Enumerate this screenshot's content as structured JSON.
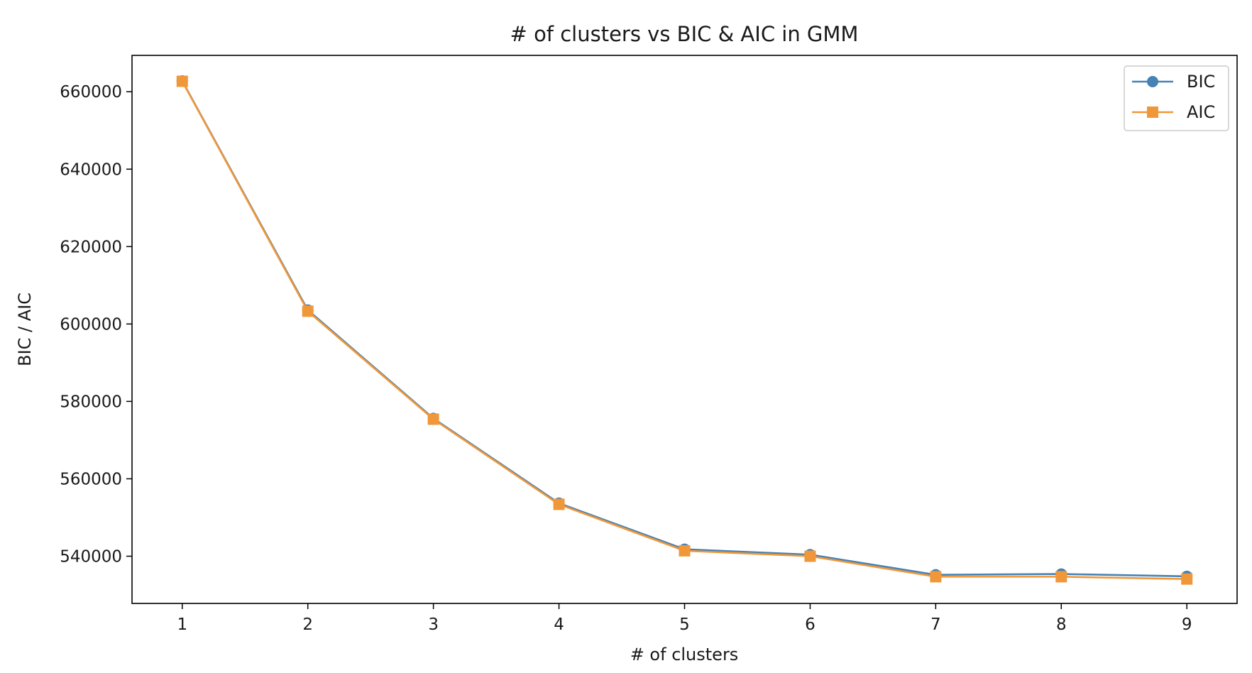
{
  "chart_data": {
    "type": "line",
    "title": "# of clusters vs BIC & AIC in GMM",
    "xlabel": "# of clusters",
    "ylabel": "BIC / AIC",
    "x": [
      1,
      2,
      3,
      4,
      5,
      6,
      7,
      8,
      9
    ],
    "xticks": [
      "1",
      "2",
      "3",
      "4",
      "5",
      "6",
      "7",
      "8",
      "9"
    ],
    "xlim": [
      0.6,
      9.4
    ],
    "yticks": [
      540000,
      560000,
      580000,
      600000,
      620000,
      640000,
      660000
    ],
    "ytick_labels": [
      "540000",
      "560000",
      "580000",
      "600000",
      "620000",
      "640000",
      "660000"
    ],
    "ylim": [
      527800,
      669400
    ],
    "grid": false,
    "legend_position": "top-right",
    "series": [
      {
        "name": "BIC",
        "color": "#4682b4",
        "marker": "circle",
        "values": [
          662800,
          603600,
          575600,
          553700,
          541800,
          540400,
          535200,
          535400,
          534800
        ]
      },
      {
        "name": "AIC",
        "color": "#f0973a",
        "marker": "square",
        "values": [
          662700,
          603300,
          575400,
          553400,
          541400,
          540000,
          534700,
          534700,
          534100
        ]
      }
    ]
  }
}
